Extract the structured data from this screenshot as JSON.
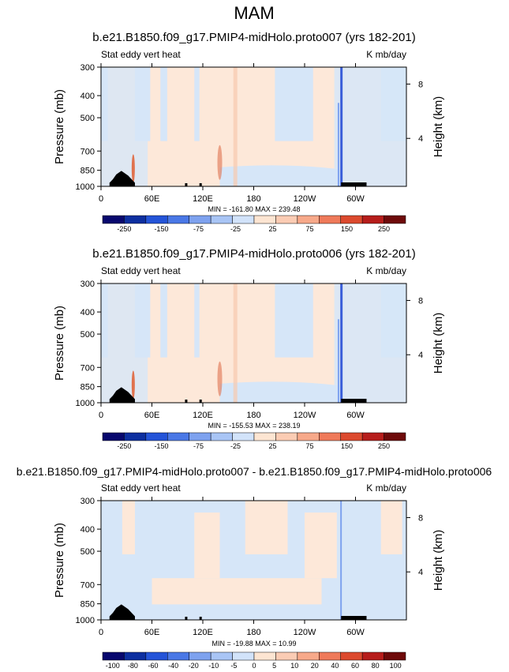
{
  "main_title": "MAM",
  "colors": {
    "cold_strong": "#3b5fd9",
    "cold_light": "#d6e6f8",
    "warm_light": "#fde8d9",
    "warm_strong": "#e0724e",
    "land": "#000000"
  },
  "palette": [
    "#08086e",
    "#0d2fa0",
    "#2454d8",
    "#4a78e6",
    "#7ea2ef",
    "#a9c5f5",
    "#d2e3fa",
    "#fde5d2",
    "#fbccb4",
    "#f7a98a",
    "#ef7a5a",
    "#dc4a2e",
    "#b61d1b",
    "#6e0a0a"
  ],
  "chart_data": [
    {
      "type": "heatmap",
      "title": "b.e21.B1850.f09_g17.PMIP4-midHolo.proto007 (yrs 182-201)",
      "left_label": "Stat eddy vert heat",
      "right_label": "K mb/day",
      "ylabel": "Pressure (mb)",
      "ylabel_right": "Height (km)",
      "xticks": [
        "0",
        "60E",
        "120E",
        "180",
        "120W",
        "60W"
      ],
      "xlim": [
        0,
        360
      ],
      "yticks": [
        "300",
        "400",
        "500",
        "700",
        "850",
        "1000"
      ],
      "ylim": [
        1000,
        300
      ],
      "right_ticks": [
        "8",
        "4"
      ],
      "stats": "MIN = -161.80   MAX = 239.48",
      "colorbar_labels": [
        "-250",
        "-150",
        "-75",
        "-25",
        "25",
        "75",
        "150",
        "250"
      ]
    },
    {
      "type": "heatmap",
      "title": "b.e21.B1850.f09_g17.PMIP4-midHolo.proto006 (yrs 182-201)",
      "left_label": "Stat eddy vert heat",
      "right_label": "K mb/day",
      "ylabel": "Pressure (mb)",
      "ylabel_right": "Height (km)",
      "xticks": [
        "0",
        "60E",
        "120E",
        "180",
        "120W",
        "60W"
      ],
      "xlim": [
        0,
        360
      ],
      "yticks": [
        "300",
        "400",
        "500",
        "700",
        "850",
        "1000"
      ],
      "ylim": [
        1000,
        300
      ],
      "right_ticks": [
        "8",
        "4"
      ],
      "stats": "MIN = -155.53   MAX = 238.19",
      "colorbar_labels": [
        "-250",
        "-150",
        "-75",
        "-25",
        "25",
        "75",
        "150",
        "250"
      ]
    },
    {
      "type": "heatmap",
      "title": "b.e21.B1850.f09_g17.PMIP4-midHolo.proto007 - b.e21.B1850.f09_g17.PMIP4-midHolo.proto006",
      "left_label": "Stat eddy vert heat",
      "right_label": "K mb/day",
      "ylabel": "Pressure (mb)",
      "ylabel_right": "Height (km)",
      "xticks": [
        "0",
        "60E",
        "120E",
        "180",
        "120W",
        "60W"
      ],
      "xlim": [
        0,
        360
      ],
      "yticks": [
        "300",
        "400",
        "500",
        "700",
        "850",
        "1000"
      ],
      "ylim": [
        1000,
        300
      ],
      "right_ticks": [
        "8",
        "4"
      ],
      "stats": "MIN = -19.88   MAX = 10.99",
      "colorbar_labels": [
        "-100",
        "-80",
        "-60",
        "-40",
        "-20",
        "-10",
        "-5",
        "0",
        "5",
        "10",
        "20",
        "40",
        "60",
        "80",
        "100"
      ]
    }
  ]
}
